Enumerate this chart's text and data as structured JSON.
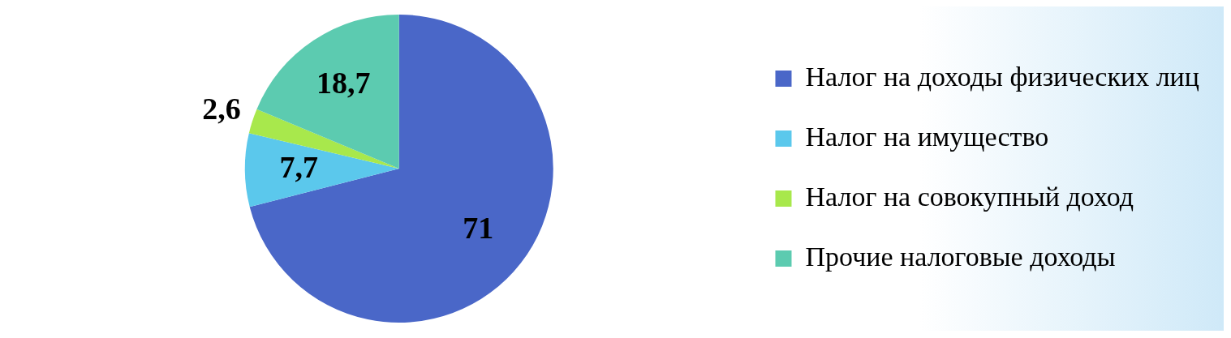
{
  "chart_data": {
    "type": "pie",
    "categories": [
      "Налог на доходы физических лиц",
      "Налог на имущество",
      "Налог на совокупный доход",
      "Прочие налоговые доходы"
    ],
    "values": [
      71,
      7.7,
      2.6,
      18.7
    ],
    "value_labels": [
      "71",
      "7,7",
      "2,6",
      "18,7"
    ],
    "colors": [
      "#4a67c8",
      "#5bc8ec",
      "#a8e84c",
      "#5ccbb0"
    ],
    "legend": "right"
  }
}
